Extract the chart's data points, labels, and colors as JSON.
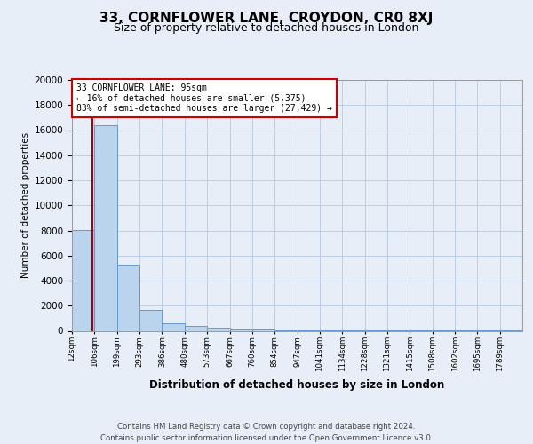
{
  "title": "33, CORNFLOWER LANE, CROYDON, CR0 8XJ",
  "subtitle": "Size of property relative to detached houses in London",
  "xlabel": "Distribution of detached houses by size in London",
  "ylabel": "Number of detached properties",
  "footer_line1": "Contains HM Land Registry data © Crown copyright and database right 2024.",
  "footer_line2": "Contains public sector information licensed under the Open Government Licence v3.0.",
  "bar_edges": [
    12,
    106,
    199,
    293,
    386,
    480,
    573,
    667,
    760,
    854,
    947,
    1041,
    1134,
    1228,
    1321,
    1415,
    1508,
    1602,
    1695,
    1789,
    1882
  ],
  "bar_values": [
    8050,
    16400,
    5300,
    1650,
    620,
    380,
    230,
    130,
    80,
    50,
    30,
    20,
    18,
    15,
    12,
    10,
    8,
    6,
    5,
    4
  ],
  "bar_color": "#bad4ed",
  "bar_edge_color": "#6699cc",
  "property_size": 95,
  "property_label": "33 CORNFLOWER LANE: 95sqm",
  "smaller_pct": "16%",
  "smaller_count": "5,375",
  "larger_pct": "83%",
  "larger_type": "semi-detached",
  "larger_count": "27,429",
  "vline_color": "#aa0000",
  "annotation_box_color": "#cc0000",
  "ylim": [
    0,
    20000
  ],
  "yticks": [
    0,
    2000,
    4000,
    6000,
    8000,
    10000,
    12000,
    14000,
    16000,
    18000,
    20000
  ],
  "background_color": "#e8eef8",
  "plot_bg_color": "#e8eef8",
  "title_fontsize": 11,
  "subtitle_fontsize": 9
}
